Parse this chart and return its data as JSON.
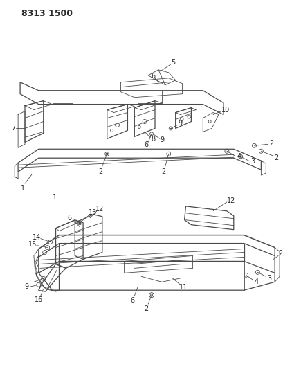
{
  "title": "8313 1500",
  "bg_color": "#ffffff",
  "line_color": "#4a4a4a",
  "title_fontsize": 9,
  "label_fontsize": 7,
  "fig_width": 4.1,
  "fig_height": 5.33,
  "dpi": 100
}
